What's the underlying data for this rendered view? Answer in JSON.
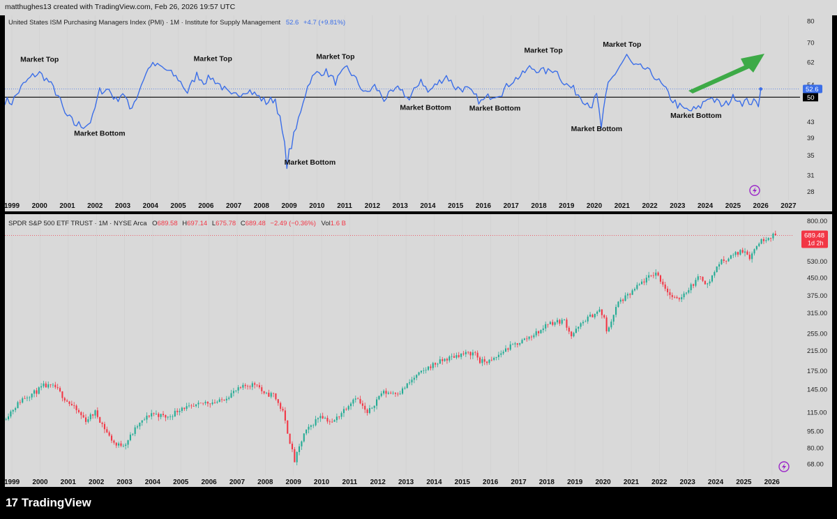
{
  "header": {
    "credit": "matthughes13 created with TradingView.com, Feb 26, 2026 19:57 UTC"
  },
  "pmi_legend": {
    "title": "United States ISM Purchasing Managers Index (PMI) · 1M · Institute for Supply Management",
    "value": "52.6",
    "change": "+4.7 (+9.81%)"
  },
  "spy_legend": {
    "title": "SPDR S&P 500 ETF TRUST · 1M · NYSE Arca",
    "o_label": "O",
    "o": "689.58",
    "h_label": "H",
    "h": "697.14",
    "l_label": "L",
    "l": "675.78",
    "c_label": "C",
    "c": "689.48",
    "chg": "−2.49 (−0.36%)",
    "vol_label": "Vol",
    "vol": "1.6 B"
  },
  "footer": {
    "brand": "TradingView",
    "logo": "17"
  },
  "colors": {
    "pane_bg": "#d9d9d9",
    "pmi_line": "#3b6ee8",
    "up": "#22ab94",
    "down": "#f23645",
    "arrow": "#3daa47",
    "icon": "#9b27c8"
  },
  "chart_data": [
    {
      "type": "line",
      "title": "United States ISM Purchasing Managers Index (PMI)",
      "scale": "log",
      "ylim": [
        27,
        82
      ],
      "xlim": [
        "1998-10",
        "2027-06"
      ],
      "yticks": [
        80,
        70,
        62,
        54,
        50,
        43,
        39,
        35,
        31,
        28
      ],
      "xticks": [
        "1999",
        "2000",
        "2001",
        "2002",
        "2003",
        "2004",
        "2005",
        "2006",
        "2007",
        "2008",
        "2009",
        "2010",
        "2011",
        "2012",
        "2013",
        "2014",
        "2015",
        "2016",
        "2017",
        "2018",
        "2019",
        "2020",
        "2021",
        "2022",
        "2023",
        "2024",
        "2025",
        "2026",
        "2027"
      ],
      "reference_line": 50,
      "last_value": 52.6,
      "series": [
        {
          "name": "",
          "points": [
            [
              "1998-10",
              49.0
            ],
            [
              "1999-01",
              48.5
            ],
            [
              "1999-06",
              54.0
            ],
            [
              "1999-10",
              57.0
            ],
            [
              "2000-01",
              58.0
            ],
            [
              "2000-05",
              55.0
            ],
            [
              "2000-09",
              50.5
            ],
            [
              "2000-12",
              45.0
            ],
            [
              "2001-04",
              42.5
            ],
            [
              "2001-07",
              42.0
            ],
            [
              "2001-10",
              42.5
            ],
            [
              "2001-12",
              44.0
            ],
            [
              "2002-03",
              52.0
            ],
            [
              "2002-07",
              52.5
            ],
            [
              "2002-10",
              49.0
            ],
            [
              "2003-01",
              51.5
            ],
            [
              "2003-04",
              46.5
            ],
            [
              "2003-07",
              50.0
            ],
            [
              "2003-10",
              56.0
            ],
            [
              "2004-01",
              61.0
            ],
            [
              "2004-05",
              60.5
            ],
            [
              "2004-09",
              58.5
            ],
            [
              "2005-01",
              56.0
            ],
            [
              "2005-05",
              51.5
            ],
            [
              "2005-09",
              57.5
            ],
            [
              "2005-12",
              55.0
            ],
            [
              "2006-03",
              56.5
            ],
            [
              "2006-07",
              54.0
            ],
            [
              "2006-12",
              50.0
            ],
            [
              "2007-03",
              51.0
            ],
            [
              "2007-07",
              52.5
            ],
            [
              "2007-11",
              50.5
            ],
            [
              "2008-03",
              48.5
            ],
            [
              "2008-07",
              49.5
            ],
            [
              "2008-09",
              43.5
            ],
            [
              "2008-12",
              33.5
            ],
            [
              "2009-04",
              41.0
            ],
            [
              "2009-07",
              49.0
            ],
            [
              "2009-10",
              55.5
            ],
            [
              "2010-01",
              58.0
            ],
            [
              "2010-05",
              58.5
            ],
            [
              "2010-09",
              55.0
            ],
            [
              "2011-02",
              60.0
            ],
            [
              "2011-06",
              55.5
            ],
            [
              "2011-10",
              51.0
            ],
            [
              "2012-02",
              53.5
            ],
            [
              "2012-06",
              49.5
            ],
            [
              "2012-10",
              51.5
            ],
            [
              "2013-01",
              53.0
            ],
            [
              "2013-05",
              49.0
            ],
            [
              "2013-10",
              56.0
            ],
            [
              "2014-01",
              51.5
            ],
            [
              "2014-06",
              55.0
            ],
            [
              "2014-09",
              57.0
            ],
            [
              "2015-01",
              53.0
            ],
            [
              "2015-06",
              52.5
            ],
            [
              "2015-12",
              48.5
            ],
            [
              "2016-04",
              50.5
            ],
            [
              "2016-09",
              51.5
            ],
            [
              "2017-01",
              55.0
            ],
            [
              "2017-06",
              57.5
            ],
            [
              "2017-09",
              60.0
            ],
            [
              "2018-01",
              59.0
            ],
            [
              "2018-05",
              58.5
            ],
            [
              "2018-08",
              59.5
            ],
            [
              "2018-12",
              54.5
            ],
            [
              "2019-04",
              52.5
            ],
            [
              "2019-08",
              49.5
            ],
            [
              "2019-12",
              47.5
            ],
            [
              "2020-02",
              50.5
            ],
            [
              "2020-04",
              41.5
            ],
            [
              "2020-07",
              54.0
            ],
            [
              "2020-12",
              60.5
            ],
            [
              "2021-03",
              64.5
            ],
            [
              "2021-06",
              60.5
            ],
            [
              "2021-10",
              60.0
            ],
            [
              "2022-03",
              57.0
            ],
            [
              "2022-07",
              53.0
            ],
            [
              "2022-11",
              49.0
            ],
            [
              "2023-03",
              46.5
            ],
            [
              "2023-06",
              46.0
            ],
            [
              "2023-10",
              46.5
            ],
            [
              "2024-01",
              49.0
            ],
            [
              "2024-03",
              50.3
            ],
            [
              "2024-06",
              48.5
            ],
            [
              "2024-09",
              47.2
            ],
            [
              "2024-12",
              49.3
            ],
            [
              "2025-02",
              50.3
            ],
            [
              "2025-05",
              48.5
            ],
            [
              "2025-08",
              48.7
            ],
            [
              "2025-11",
              48.2
            ],
            [
              "2025-12",
              48.0
            ],
            [
              "2026-01",
              52.6
            ]
          ]
        }
      ],
      "annotations": [
        {
          "label": "Market Top",
          "x": "2000-01",
          "y": 62.2,
          "kind": "top"
        },
        {
          "label": "Market Bottom",
          "x": "2002-03",
          "y": 39.5,
          "kind": "bottom"
        },
        {
          "label": "Market Top",
          "x": "2006-04",
          "y": 62.5,
          "kind": "top"
        },
        {
          "label": "Market Bottom",
          "x": "2009-10",
          "y": 33.0,
          "kind": "bottom"
        },
        {
          "label": "Market Top",
          "x": "2010-09",
          "y": 63.3,
          "kind": "top"
        },
        {
          "label": "Market Bottom",
          "x": "2013-12",
          "y": 46.3,
          "kind": "bottom"
        },
        {
          "label": "Market Bottom",
          "x": "2016-06",
          "y": 46.1,
          "kind": "bottom"
        },
        {
          "label": "Market Top",
          "x": "2018-03",
          "y": 65.8,
          "kind": "top"
        },
        {
          "label": "Market Bottom",
          "x": "2020-02",
          "y": 40.6,
          "kind": "bottom"
        },
        {
          "label": "Market Top",
          "x": "2021-01",
          "y": 68.2,
          "kind": "top"
        },
        {
          "label": "Market Bottom",
          "x": "2023-09",
          "y": 44.0,
          "kind": "bottom"
        }
      ]
    },
    {
      "type": "candlestick",
      "title": "SPDR S&P 500 ETF TRUST",
      "scale": "log",
      "ylim": [
        63,
        820
      ],
      "xlim": [
        "1998-10",
        "2026-10"
      ],
      "yticks": [
        800,
        680,
        530,
        450,
        375,
        315,
        255,
        215,
        175,
        145,
        115,
        95,
        80,
        68
      ],
      "ytick_labels": [
        "800.00",
        "680.00",
        "530.00",
        "450.00",
        "375.00",
        "315.00",
        "255.00",
        "215.00",
        "175.00",
        "145.00",
        "115.00",
        "95.00",
        "80.00",
        "68.00"
      ],
      "xticks": [
        "1999",
        "2000",
        "2001",
        "2002",
        "2003",
        "2004",
        "2005",
        "2006",
        "2007",
        "2008",
        "2009",
        "2010",
        "2011",
        "2012",
        "2013",
        "2014",
        "2015",
        "2016",
        "2017",
        "2018",
        "2019",
        "2020",
        "2021",
        "2022",
        "2023",
        "2024",
        "2025",
        "2026"
      ],
      "last_price": "689.48",
      "last_price_time": "1d 2h",
      "path": [
        [
          "1998-10",
          107
        ],
        [
          "1999-06",
          132
        ],
        [
          "1999-12",
          142
        ],
        [
          "2000-03",
          150
        ],
        [
          "2000-08",
          148
        ],
        [
          "2000-12",
          132
        ],
        [
          "2001-04",
          120
        ],
        [
          "2001-09",
          106
        ],
        [
          "2002-01",
          115
        ],
        [
          "2002-07",
          90
        ],
        [
          "2002-10",
          82
        ],
        [
          "2003-02",
          84
        ],
        [
          "2003-07",
          100
        ],
        [
          "2004-01",
          114
        ],
        [
          "2004-08",
          109
        ],
        [
          "2005-02",
          121
        ],
        [
          "2005-06",
          120
        ],
        [
          "2005-12",
          127
        ],
        [
          "2006-06",
          128
        ],
        [
          "2006-12",
          141
        ],
        [
          "2007-05",
          150
        ],
        [
          "2007-10",
          154
        ],
        [
          "2008-01",
          137
        ],
        [
          "2008-05",
          138
        ],
        [
          "2008-09",
          115
        ],
        [
          "2009-02",
          70
        ],
        [
          "2009-06",
          92
        ],
        [
          "2010-01",
          112
        ],
        [
          "2010-06",
          103
        ],
        [
          "2011-04",
          135
        ],
        [
          "2011-09",
          113
        ],
        [
          "2012-03",
          140
        ],
        [
          "2012-11",
          141
        ],
        [
          "2013-05",
          163
        ],
        [
          "2013-12",
          184
        ],
        [
          "2014-06",
          196
        ],
        [
          "2014-12",
          206
        ],
        [
          "2015-07",
          210
        ],
        [
          "2015-09",
          192
        ],
        [
          "2016-02",
          193
        ],
        [
          "2016-08",
          218
        ],
        [
          "2017-03",
          237
        ],
        [
          "2017-12",
          267
        ],
        [
          "2018-01",
          282
        ],
        [
          "2018-09",
          291
        ],
        [
          "2018-12",
          250
        ],
        [
          "2019-06",
          294
        ],
        [
          "2019-12",
          322
        ],
        [
          "2020-02",
          296
        ],
        [
          "2020-03",
          258
        ],
        [
          "2020-08",
          350
        ],
        [
          "2020-12",
          373
        ],
        [
          "2021-06",
          428
        ],
        [
          "2021-12",
          474
        ],
        [
          "2022-06",
          377
        ],
        [
          "2022-09",
          357
        ],
        [
          "2022-12",
          383
        ],
        [
          "2023-07",
          457
        ],
        [
          "2023-10",
          418
        ],
        [
          "2024-03",
          523
        ],
        [
          "2024-07",
          550
        ],
        [
          "2024-12",
          586
        ],
        [
          "2025-02",
          594
        ],
        [
          "2025-04",
          554
        ],
        [
          "2025-08",
          645
        ],
        [
          "2025-12",
          682
        ],
        [
          "2026-02",
          689
        ]
      ],
      "candle_count": 329
    }
  ]
}
